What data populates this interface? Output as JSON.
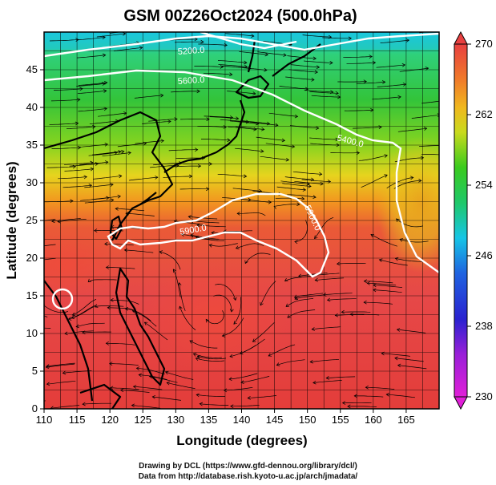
{
  "title": "GSM 00Z26Oct2024 (500.0hPa)",
  "xlabel": "Longitude (degrees)",
  "ylabel": "Latitude  (degrees)",
  "footer": {
    "line1": "Drawing by DCL (https://www.gfd-dennou.org/library/dcl/)",
    "line2": "Data from http://database.rish.kyoto-u.ac.jp/arch/jmadata/"
  },
  "colorbar": {
    "min": 230,
    "max": 270,
    "tick_labels": [
      "230",
      "238",
      "246",
      "254",
      "262",
      "270"
    ]
  },
  "chart_data": {
    "type": "heatmap",
    "field": "temperature (K) with geopotential height contours and streamlines",
    "x_range": [
      110,
      170
    ],
    "y_range": [
      0,
      50
    ],
    "x_ticks": [
      "110",
      "115",
      "120",
      "125",
      "130",
      "135",
      "140",
      "145",
      "150",
      "155",
      "160",
      "165"
    ],
    "y_ticks": [
      "0",
      "5",
      "10",
      "15",
      "20",
      "25",
      "30",
      "35",
      "40",
      "45"
    ],
    "contour_labels": [
      "5900.0",
      "5600.0",
      "5400.0",
      "5200.0",
      "5900.0"
    ],
    "colors": {
      "magenta": "#d21fc8",
      "blue": "#1f1fc8",
      "cyan": "#13c3e5",
      "green": "#22c822",
      "yellow": "#e8ea1a",
      "orange": "#f08a1d",
      "red": "#e84040"
    },
    "grid": true
  }
}
